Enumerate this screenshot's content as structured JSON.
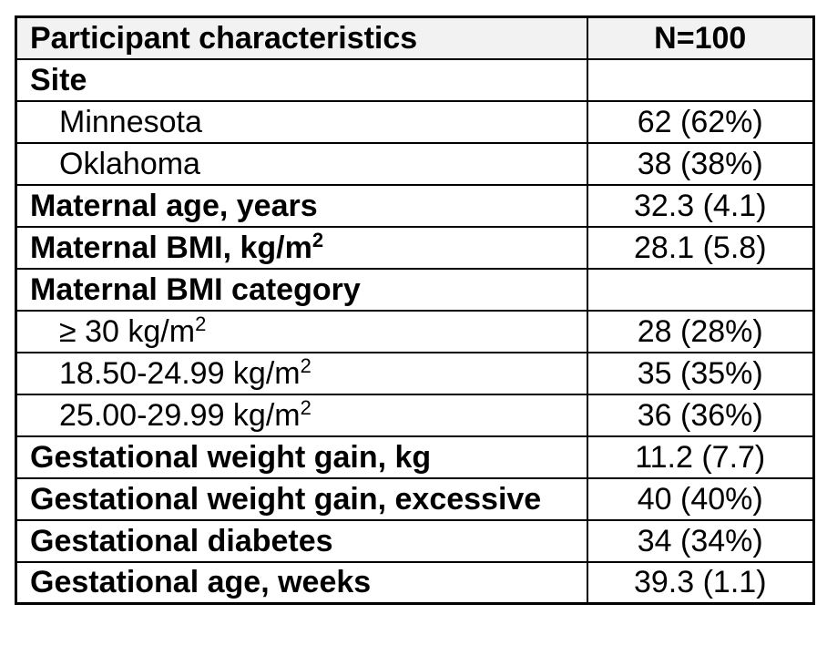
{
  "colors": {
    "header_bg": "#f2f2f2",
    "border": "#000000",
    "text": "#000000"
  },
  "table": {
    "header": {
      "characteristics_label": "Participant characteristics",
      "n_label": "N=100"
    },
    "rows": [
      {
        "label": "Site",
        "value": "",
        "bold": true,
        "indent": false
      },
      {
        "label": "Minnesota",
        "value": "62 (62%)",
        "bold": false,
        "indent": true
      },
      {
        "label": "Oklahoma",
        "value": "38 (38%)",
        "bold": false,
        "indent": true
      },
      {
        "label": "Maternal age, years",
        "value": "32.3 (4.1)",
        "bold": true,
        "indent": false
      },
      {
        "label": "Maternal BMI, kg/m²",
        "value": "28.1 (5.8)",
        "bold": true,
        "indent": false
      },
      {
        "label": "Maternal BMI category",
        "value": "",
        "bold": true,
        "indent": false
      },
      {
        "label": "≥ 30 kg/m²",
        "value": "28 (28%)",
        "bold": false,
        "indent": true
      },
      {
        "label": "18.50-24.99 kg/m²",
        "value": "35 (35%)",
        "bold": false,
        "indent": true
      },
      {
        "label": "25.00-29.99 kg/m²",
        "value": "36 (36%)",
        "bold": false,
        "indent": true
      },
      {
        "label": "Gestational weight gain, kg",
        "value": "11.2 (7.7)",
        "bold": true,
        "indent": false
      },
      {
        "label": "Gestational weight gain, excessive",
        "value": "40 (40%)",
        "bold": true,
        "indent": false
      },
      {
        "label": "Gestational diabetes",
        "value": "34 (34%)",
        "bold": true,
        "indent": false
      },
      {
        "label": "Gestational age, weeks",
        "value": "39.3 (1.1)",
        "bold": true,
        "indent": false
      }
    ]
  }
}
